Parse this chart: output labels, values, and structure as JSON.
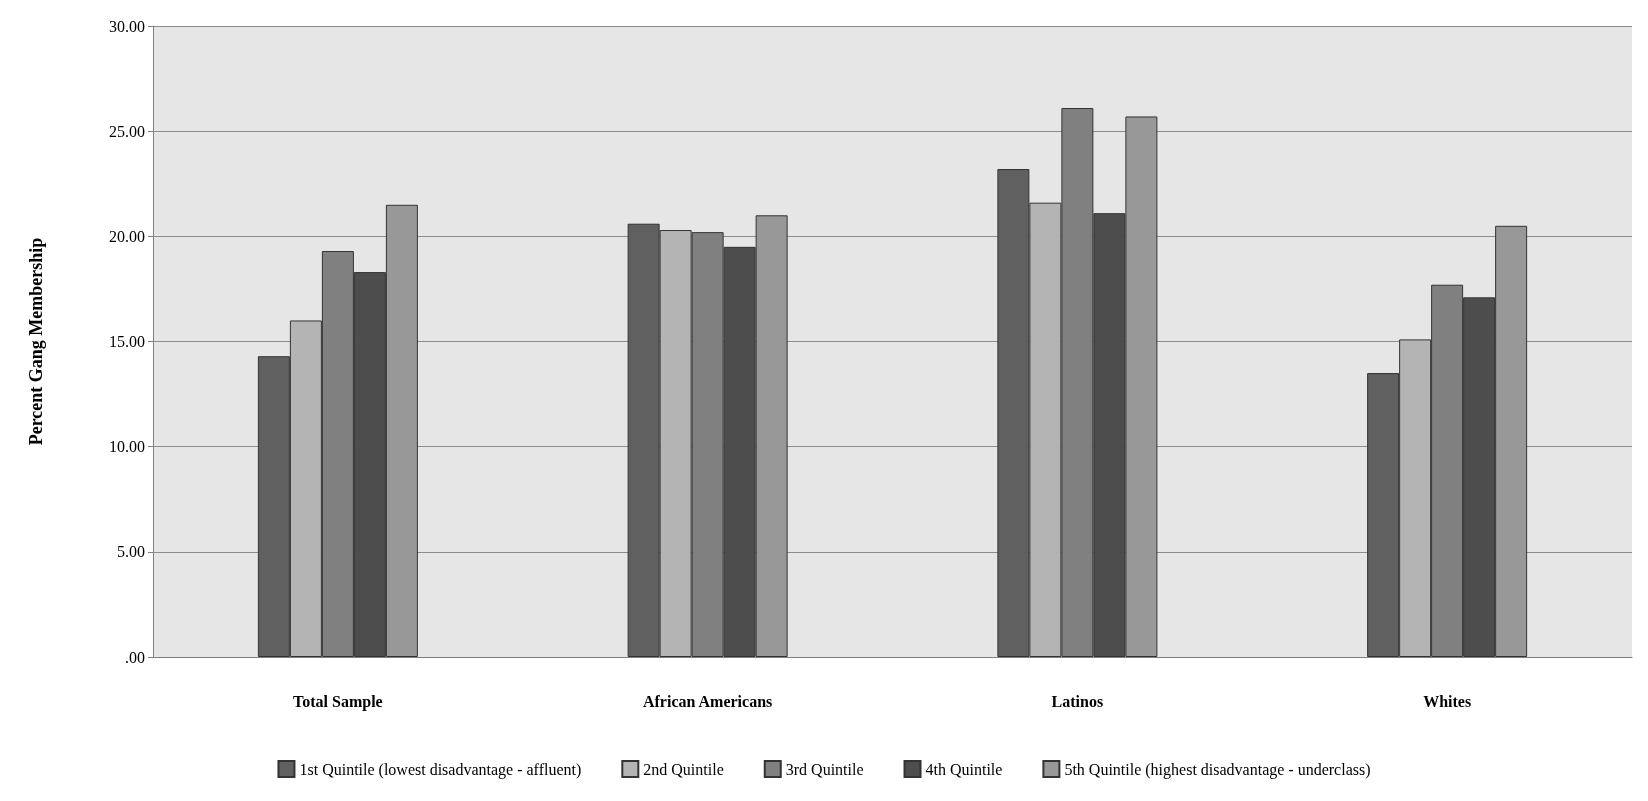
{
  "chart_data": {
    "type": "bar",
    "ylabel": "Percent Gang Membership",
    "categories": [
      "Total Sample",
      "African Americans",
      "Latinos",
      "Whites"
    ],
    "series": [
      {
        "name": "1st Quintile (lowest disadvantage - affluent)",
        "color": "#606060",
        "values": [
          14.3,
          20.6,
          23.2,
          13.5
        ]
      },
      {
        "name": "2nd Quintile",
        "color": "#b4b4b4",
        "values": [
          16.0,
          20.3,
          21.6,
          15.1
        ]
      },
      {
        "name": "3rd Quintile",
        "color": "#808080",
        "values": [
          19.3,
          20.2,
          26.1,
          17.7
        ]
      },
      {
        "name": "4th Quintile",
        "color": "#4d4d4d",
        "values": [
          18.3,
          19.5,
          21.1,
          17.1
        ]
      },
      {
        "name": "5th Quintile (highest disadvantage - underclass)",
        "color": "#989898",
        "values": [
          21.5,
          21.0,
          25.7,
          20.5
        ]
      }
    ],
    "ylim": [
      0,
      30
    ],
    "yticks": [
      {
        "value": 0,
        "label": ".00"
      },
      {
        "value": 5,
        "label": "5.00"
      },
      {
        "value": 10,
        "label": "10.00"
      },
      {
        "value": 15,
        "label": "15.00"
      },
      {
        "value": 20,
        "label": "20.00"
      },
      {
        "value": 25,
        "label": "25.00"
      },
      {
        "value": 30,
        "label": "30.00"
      }
    ],
    "grid": "y",
    "legend": "bottom"
  }
}
